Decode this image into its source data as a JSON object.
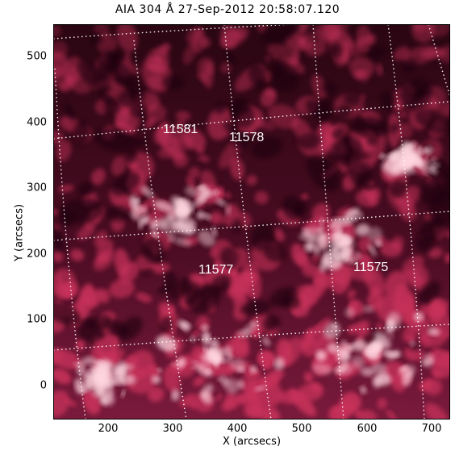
{
  "title": "AIA 304 Å 27-Sep-2012 20:58:07.120",
  "xlabel": "X (arcsecs)",
  "ylabel": "Y (arcsecs)",
  "x_ticks": [
    "200",
    "300",
    "400",
    "500",
    "600",
    "700"
  ],
  "y_ticks": [
    "0",
    "100",
    "200",
    "300",
    "400",
    "500"
  ],
  "active_regions": [
    "11581",
    "11578",
    "11577",
    "11575"
  ],
  "colors": {
    "background": "#1a0008",
    "emission": "#c8305a",
    "bright": "#ffd6e0",
    "grid": "#ffffff"
  },
  "chart_data": {
    "type": "image",
    "xlim": [
      130,
      735
    ],
    "ylim": [
      -50,
      550
    ],
    "x_ticks": [
      200,
      300,
      400,
      500,
      600,
      700
    ],
    "y_ticks": [
      0,
      100,
      200,
      300,
      400,
      500
    ]
  }
}
